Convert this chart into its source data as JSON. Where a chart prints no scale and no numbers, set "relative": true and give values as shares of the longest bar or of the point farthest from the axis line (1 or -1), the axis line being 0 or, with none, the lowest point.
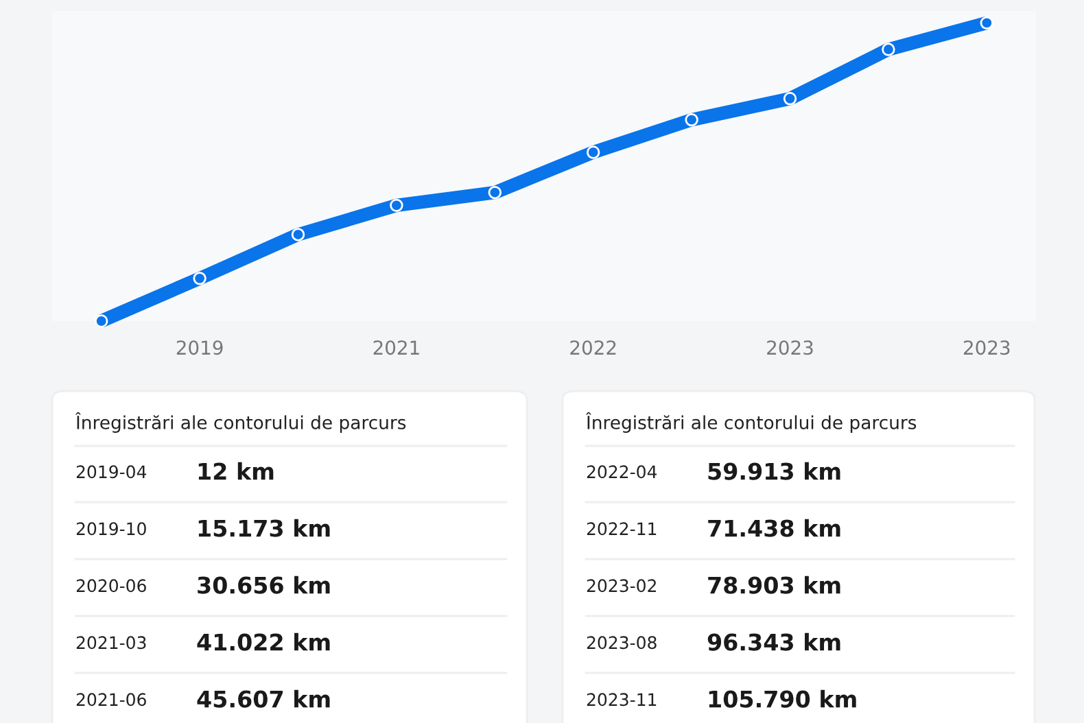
{
  "chart_data": {
    "type": "line",
    "categories": [
      null,
      "2019",
      null,
      "2021",
      null,
      "2022",
      null,
      "2023",
      null,
      "2023"
    ],
    "relative": true,
    "series": [
      {
        "color": "#0a74ea",
        "values": [
          0,
          0.143,
          0.29,
          0.388,
          0.431,
          0.566,
          0.675,
          0.746,
          0.911,
          1
        ]
      }
    ],
    "tick_labels": "x",
    "marker": "circle",
    "line_style": "solid",
    "annotations": [
      "Înregistrări ale contorului de parcurs",
      "Înregistrări ale contorului de parcurs",
      "2019-04",
      "12 km",
      "2019-10",
      "15.173 km",
      "2020-06",
      "30.656 km",
      "2021-03",
      "41.022 km",
      "2021-06",
      "45.607 km",
      "2022-04",
      "59.913 km",
      "2022-11",
      "71.438 km",
      "2023-02",
      "78.903 km",
      "2023-08",
      "96.343 km",
      "2023-11",
      "105.790 km"
    ]
  }
}
